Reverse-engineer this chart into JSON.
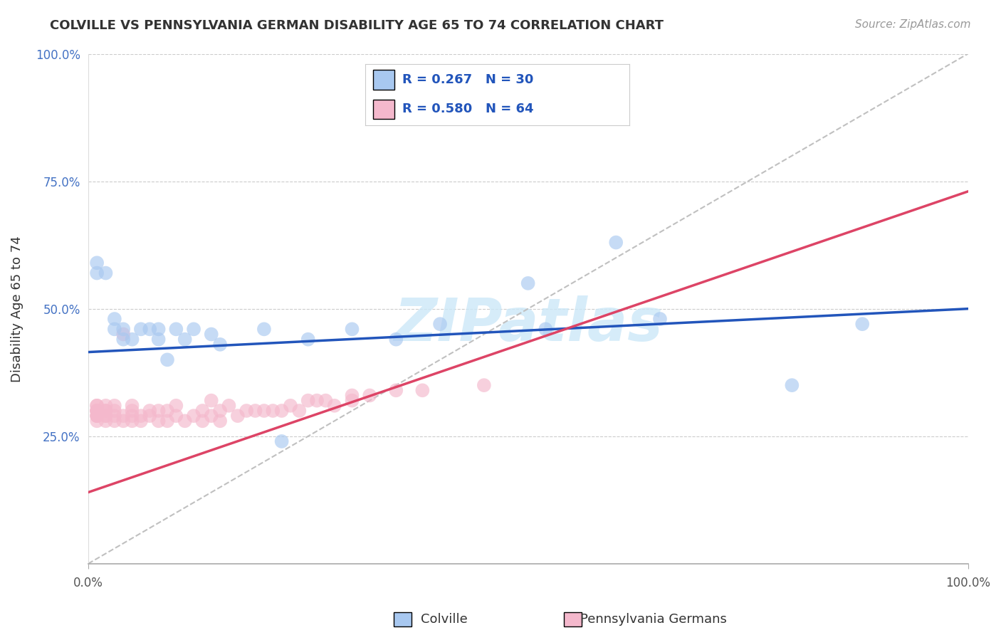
{
  "title": "COLVILLE VS PENNSYLVANIA GERMAN DISABILITY AGE 65 TO 74 CORRELATION CHART",
  "source": "Source: ZipAtlas.com",
  "ylabel": "Disability Age 65 to 74",
  "legend_colville": "Colville",
  "legend_pa": "Pennsylvania Germans",
  "R_colville": 0.267,
  "N_colville": 30,
  "R_pa": 0.58,
  "N_pa": 64,
  "colville_color": "#a8c8f0",
  "pa_color": "#f4b8cc",
  "colville_line_color": "#2255bb",
  "pa_line_color": "#dd4466",
  "colville_x": [
    0.01,
    0.01,
    0.02,
    0.03,
    0.03,
    0.04,
    0.04,
    0.05,
    0.06,
    0.07,
    0.08,
    0.08,
    0.09,
    0.1,
    0.11,
    0.12,
    0.14,
    0.15,
    0.2,
    0.22,
    0.25,
    0.3,
    0.35,
    0.4,
    0.5,
    0.52,
    0.6,
    0.65,
    0.8,
    0.88
  ],
  "colville_y": [
    0.57,
    0.59,
    0.57,
    0.46,
    0.48,
    0.44,
    0.46,
    0.44,
    0.46,
    0.46,
    0.44,
    0.46,
    0.4,
    0.46,
    0.44,
    0.46,
    0.45,
    0.43,
    0.46,
    0.24,
    0.44,
    0.46,
    0.44,
    0.47,
    0.55,
    0.46,
    0.63,
    0.48,
    0.35,
    0.47
  ],
  "pa_x": [
    0.01,
    0.01,
    0.01,
    0.01,
    0.01,
    0.01,
    0.01,
    0.01,
    0.01,
    0.01,
    0.02,
    0.02,
    0.02,
    0.02,
    0.02,
    0.02,
    0.03,
    0.03,
    0.03,
    0.03,
    0.04,
    0.04,
    0.04,
    0.05,
    0.05,
    0.05,
    0.05,
    0.06,
    0.06,
    0.07,
    0.07,
    0.08,
    0.08,
    0.09,
    0.09,
    0.1,
    0.1,
    0.11,
    0.12,
    0.13,
    0.13,
    0.14,
    0.14,
    0.15,
    0.15,
    0.16,
    0.17,
    0.18,
    0.19,
    0.2,
    0.21,
    0.22,
    0.23,
    0.24,
    0.25,
    0.26,
    0.27,
    0.28,
    0.3,
    0.3,
    0.32,
    0.35,
    0.38,
    0.45
  ],
  "pa_y": [
    0.29,
    0.3,
    0.31,
    0.3,
    0.29,
    0.3,
    0.29,
    0.28,
    0.3,
    0.31,
    0.29,
    0.3,
    0.28,
    0.3,
    0.29,
    0.31,
    0.28,
    0.29,
    0.3,
    0.31,
    0.28,
    0.29,
    0.45,
    0.28,
    0.29,
    0.3,
    0.31,
    0.28,
    0.29,
    0.29,
    0.3,
    0.28,
    0.3,
    0.28,
    0.3,
    0.29,
    0.31,
    0.28,
    0.29,
    0.28,
    0.3,
    0.29,
    0.32,
    0.28,
    0.3,
    0.31,
    0.29,
    0.3,
    0.3,
    0.3,
    0.3,
    0.3,
    0.31,
    0.3,
    0.32,
    0.32,
    0.32,
    0.31,
    0.33,
    0.32,
    0.33,
    0.34,
    0.34,
    0.35
  ],
  "xlim": [
    0.0,
    1.0
  ],
  "ylim": [
    0.0,
    1.0
  ],
  "colville_trend": [
    0.415,
    0.5
  ],
  "pa_trend": [
    0.14,
    0.73
  ],
  "watermark_text": "ZIPatlas",
  "ytick_values": [
    0.25,
    0.5,
    0.75,
    1.0
  ],
  "ytick_labels": [
    "25.0%",
    "50.0%",
    "75.0%",
    "100.0%"
  ],
  "xtick_values": [
    0.0,
    1.0
  ],
  "xtick_labels": [
    "0.0%",
    "100.0%"
  ],
  "background_color": "#ffffff",
  "grid_color": "#cccccc",
  "title_color": "#333333",
  "source_color": "#999999",
  "ytick_color": "#4472c4"
}
